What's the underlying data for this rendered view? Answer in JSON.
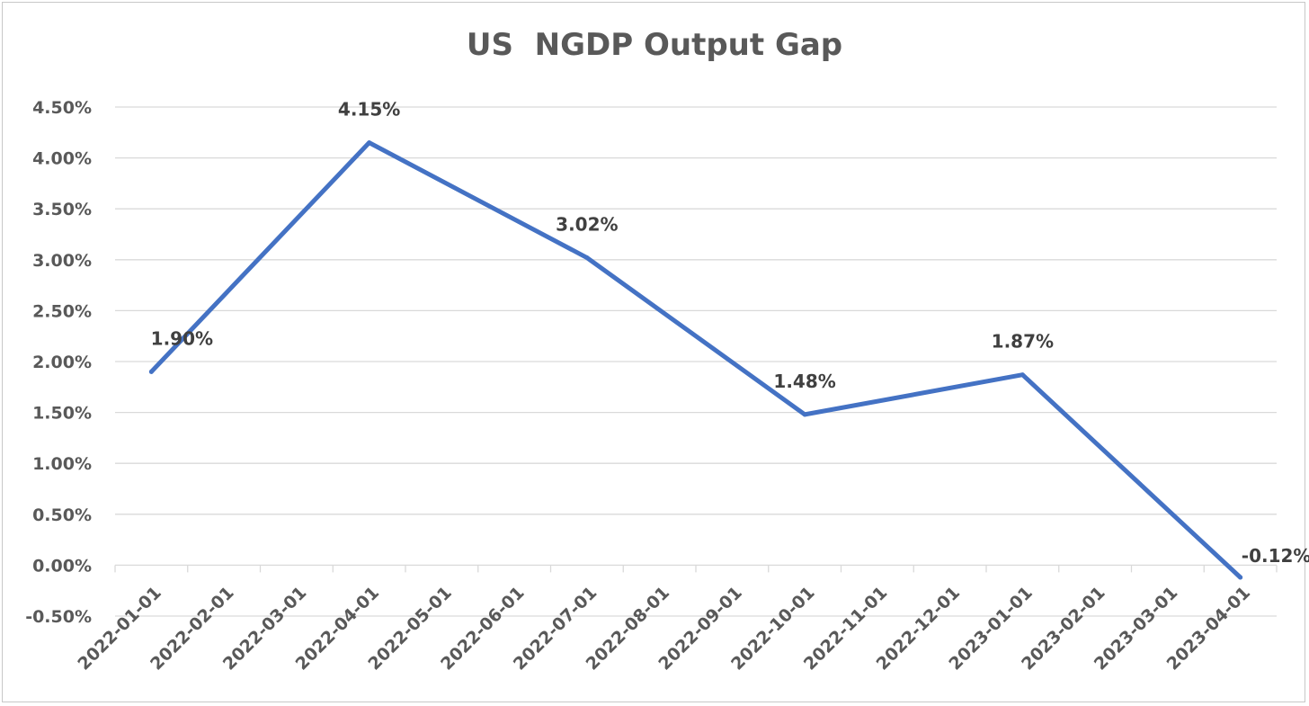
{
  "chart_data": {
    "type": "line",
    "title": "US  NGDP Output Gap",
    "xlabel": "",
    "ylabel": "",
    "x": [
      "2022-01-01",
      "2022-02-01",
      "2022-03-01",
      "2022-04-01",
      "2022-05-01",
      "2022-06-01",
      "2022-07-01",
      "2022-08-01",
      "2022-09-01",
      "2022-10-01",
      "2022-11-01",
      "2022-12-01",
      "2023-01-01",
      "2023-02-01",
      "2023-03-01",
      "2023-04-01"
    ],
    "yticks": [
      "4.50%",
      "4.00%",
      "3.50%",
      "3.00%",
      "2.50%",
      "2.00%",
      "1.50%",
      "1.00%",
      "0.50%",
      "0.00%",
      "-0.50%"
    ],
    "ylim": [
      -0.5,
      4.5
    ],
    "grid": true,
    "legend": "none",
    "series": [
      {
        "color": "#4472C4",
        "points": [
          {
            "x": "2022-01-01",
            "y": 1.9,
            "label": "1.90%"
          },
          {
            "x": "2022-04-01",
            "y": 4.15,
            "label": "4.15%"
          },
          {
            "x": "2022-07-01",
            "y": 3.02,
            "label": "3.02%"
          },
          {
            "x": "2022-10-01",
            "y": 1.48,
            "label": "1.48%"
          },
          {
            "x": "2023-01-01",
            "y": 1.87,
            "label": "1.87%"
          },
          {
            "x": "2023-04-01",
            "y": -0.12,
            "label": "-0.12%"
          }
        ]
      }
    ]
  }
}
